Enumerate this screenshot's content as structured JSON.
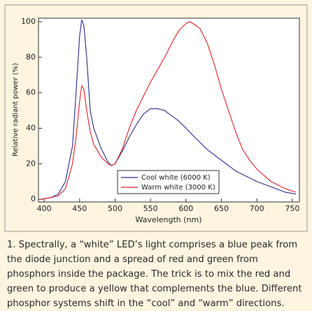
{
  "chart_data": {
    "type": "line",
    "x_label": "Wavelength (nm)",
    "y_label": "Relative radiant power (%)",
    "x": [
      395,
      410,
      420,
      430,
      440,
      445,
      450,
      453,
      456,
      460,
      465,
      470,
      480,
      490,
      495,
      500,
      510,
      520,
      530,
      540,
      550,
      560,
      570,
      580,
      590,
      600,
      605,
      610,
      620,
      630,
      640,
      650,
      660,
      670,
      680,
      690,
      700,
      720,
      740,
      755
    ],
    "series": [
      {
        "name": "Cool white (6000 K)",
        "color": "#2b2d86",
        "values": [
          0,
          1,
          3,
          10,
          30,
          60,
          92,
          101,
          98,
          80,
          50,
          40,
          29,
          21,
          19,
          20,
          27,
          35,
          42,
          48,
          51,
          51,
          50,
          47,
          44,
          40,
          38,
          36,
          32,
          28,
          25,
          22,
          19,
          16,
          14,
          12,
          10,
          7,
          4,
          3
        ]
      },
      {
        "name": "Warm white (3000 K)",
        "color": "#e0202a",
        "values": [
          0,
          1,
          2,
          6,
          20,
          35,
          55,
          64,
          62,
          50,
          38,
          31,
          24,
          20,
          19,
          20,
          28,
          40,
          50,
          58,
          66,
          73,
          80,
          88,
          95,
          99,
          100,
          99,
          96,
          88,
          76,
          62,
          50,
          38,
          28,
          22,
          17,
          10,
          6,
          4
        ]
      }
    ],
    "xlim": [
      392,
      760
    ],
    "ylim": [
      -1.5,
      102
    ],
    "xticks": [
      400,
      450,
      500,
      550,
      600,
      650,
      700,
      750
    ],
    "yticks": [
      0,
      20,
      40,
      60,
      80,
      100
    ],
    "caption": "1. Spectrally, a “white” LED’s light comprises a blue peak from the diode junction and a spread of red and green from phosphors inside the package. The trick is to mix the red and green to produce a yellow that complements the blue. Different phosphor systems shift in the “cool” and “warm” directions."
  }
}
